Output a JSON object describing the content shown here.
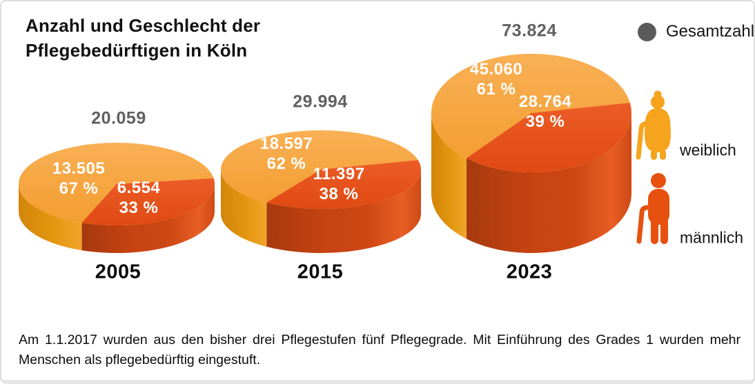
{
  "header": {
    "title_line1": "Anzahl und Geschlecht der",
    "title_line2": "Pflegebedürftigen in Köln"
  },
  "legend": {
    "total_label": "Gesamtzahl",
    "total_dot_color": "#5a5a5a",
    "female_label": "weiblich",
    "male_label": "männlich",
    "female_color": "#F6A41D",
    "male_color": "#E75110"
  },
  "chart_data": {
    "type": "pie",
    "variant": "3d-cylinder-pies",
    "title": "Anzahl und Geschlecht der Pflegebedürftigen in Köln",
    "legend_position": "right",
    "series_labels": [
      "weiblich",
      "männlich"
    ],
    "colors": {
      "female_top": "#F5A43C",
      "male_top": "#E5501C",
      "total_text": "#606060"
    },
    "pies": [
      {
        "year": "2005",
        "total": "20.059",
        "total_num": 20059,
        "female": {
          "value": "13.505",
          "num": 13505,
          "pct": "67 %",
          "pct_num": 67
        },
        "male": {
          "value": "6.554",
          "num": 6554,
          "pct": "33 %",
          "pct_num": 33
        }
      },
      {
        "year": "2015",
        "total": "29.994",
        "total_num": 29994,
        "female": {
          "value": "18.597",
          "num": 18597,
          "pct": "62 %",
          "pct_num": 62
        },
        "male": {
          "value": "11.397",
          "num": 11397,
          "pct": "38 %",
          "pct_num": 38
        }
      },
      {
        "year": "2023",
        "total": "73.824",
        "total_num": 73824,
        "female": {
          "value": "45.060",
          "num": 45060,
          "pct": "61 %",
          "pct_num": 61
        },
        "male": {
          "value": "28.764",
          "num": 28764,
          "pct": "39 %",
          "pct_num": 39
        }
      }
    ]
  },
  "footnote": {
    "text": "Am 1.1.2017 wurden aus den bisher drei Pflegestufen fünf Pflegegrade. Mit Einführung des Grades 1 wurden mehr Menschen als pflegebedürftig eingestuft."
  }
}
